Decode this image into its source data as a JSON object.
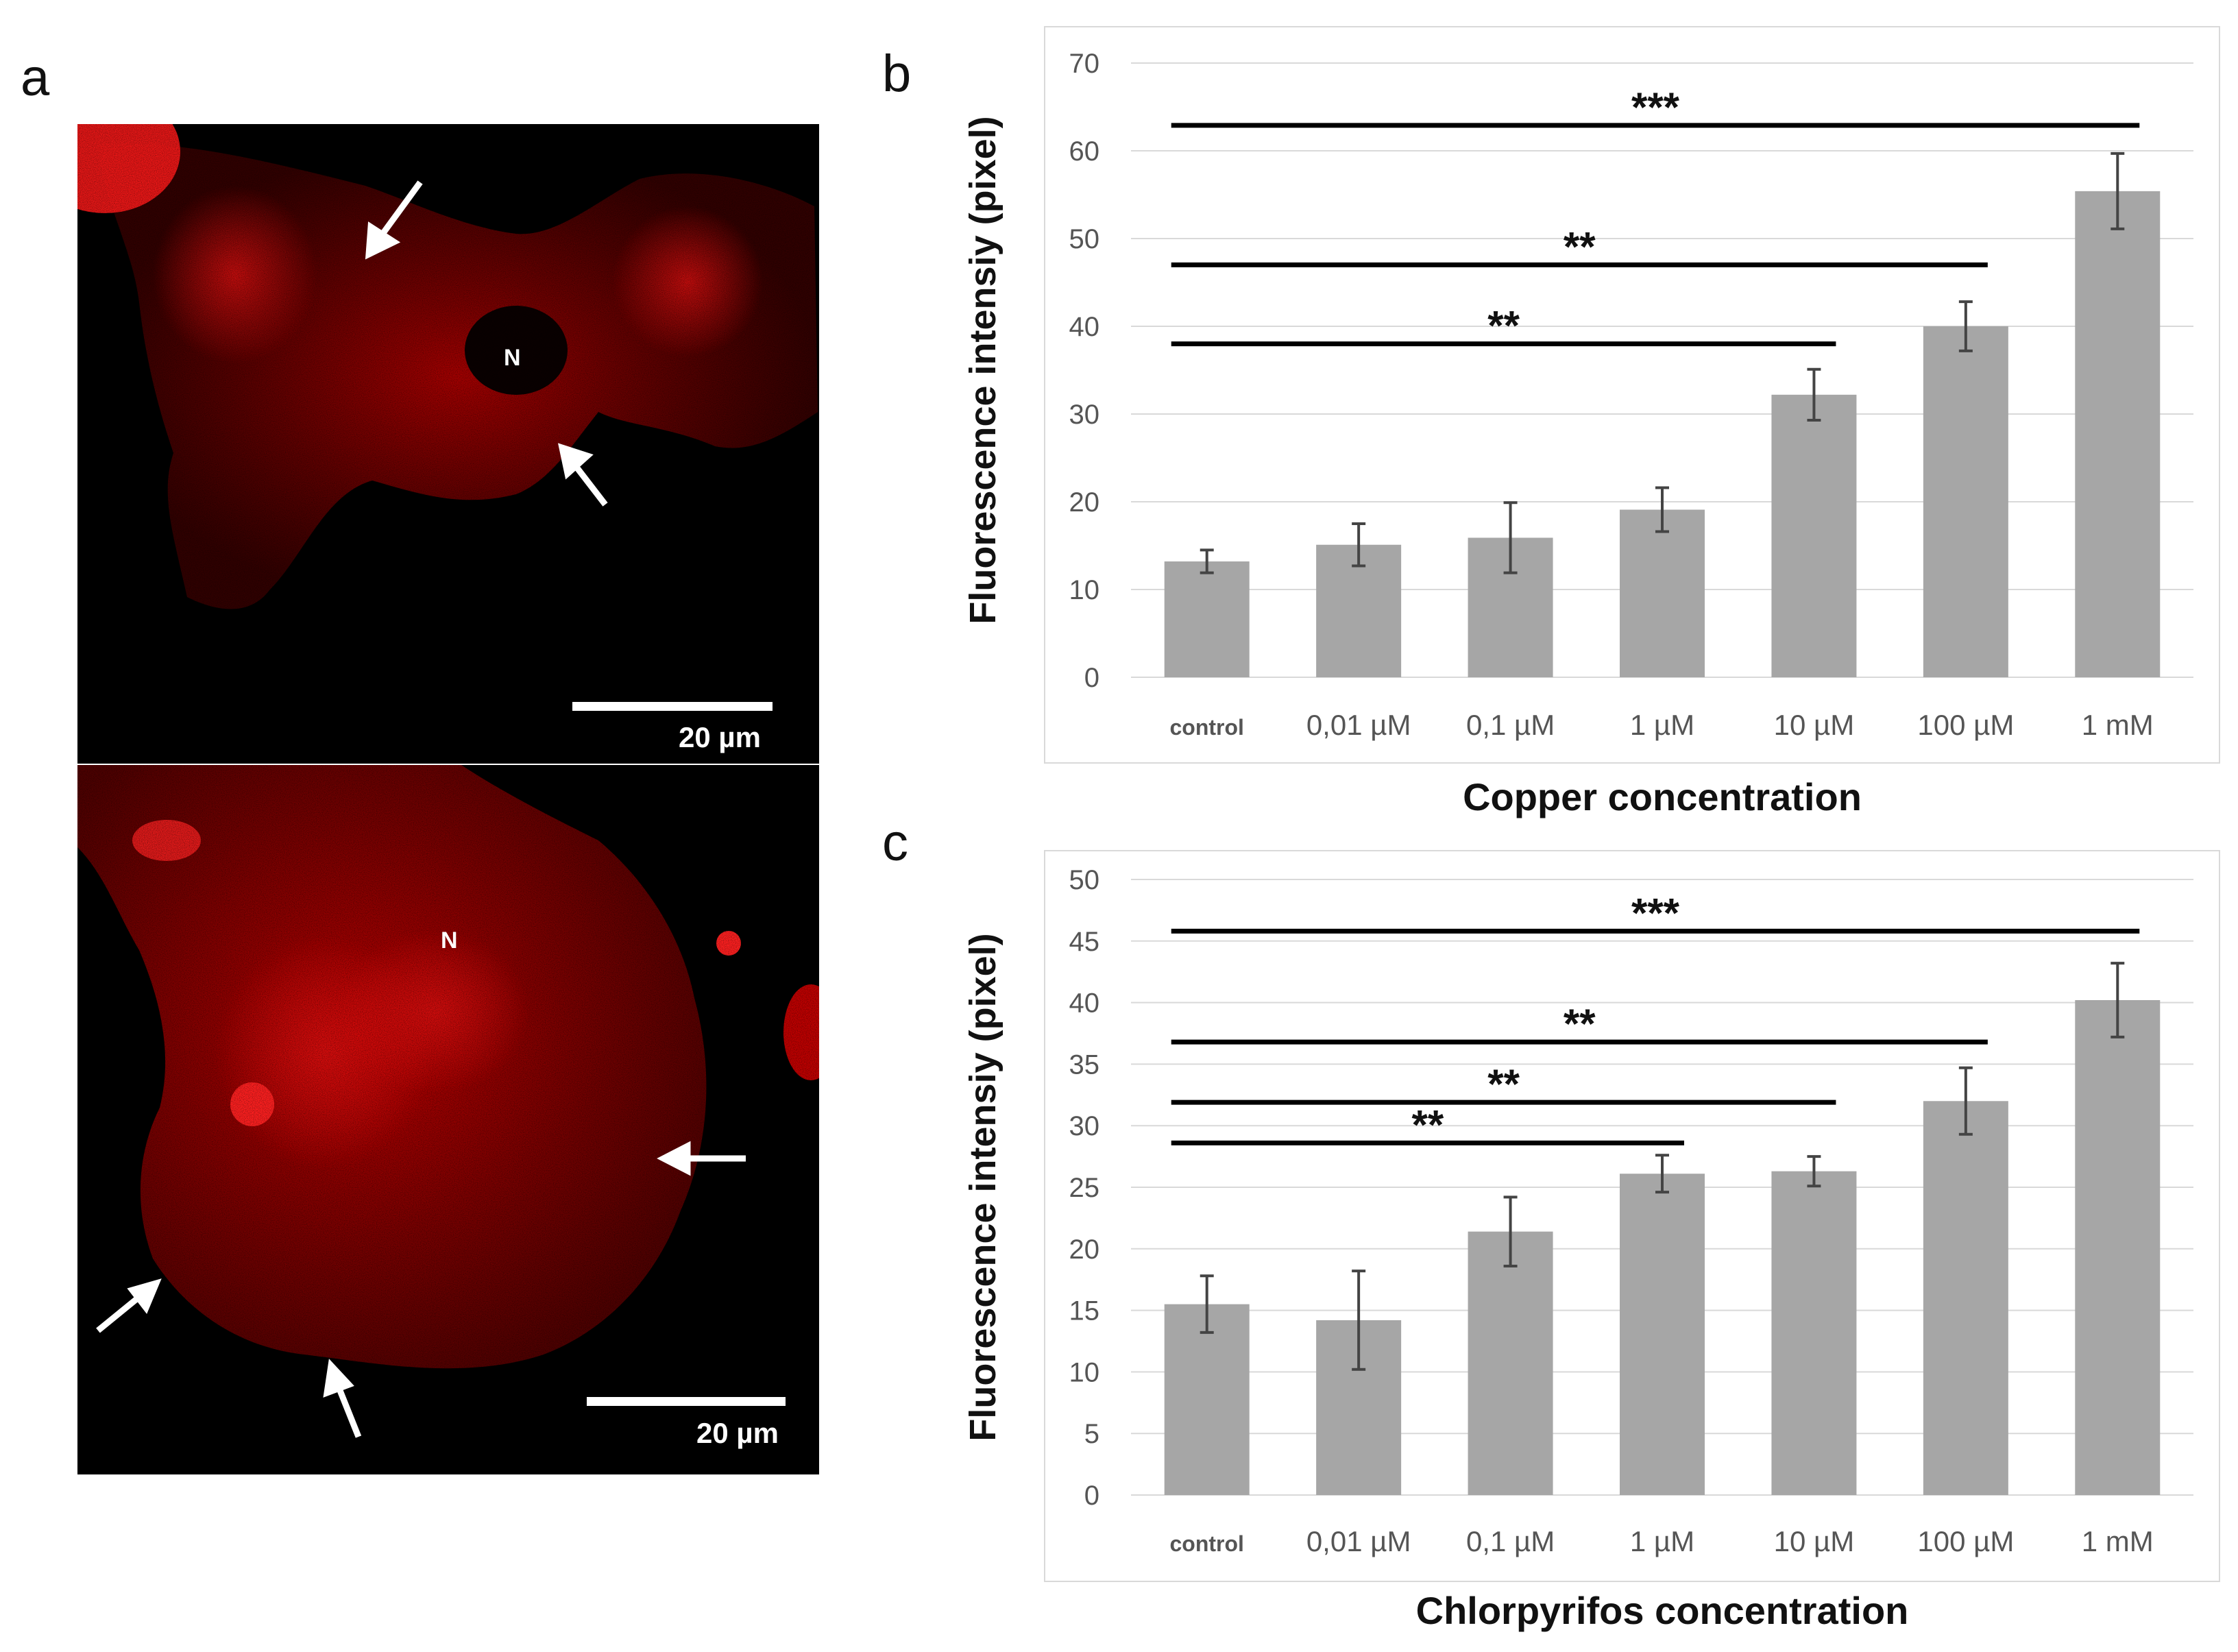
{
  "panels": {
    "a": {
      "letter": "a",
      "images": [
        {
          "nucleus_label": "N",
          "scale_label": "20 µm"
        },
        {
          "nucleus_label": "N",
          "scale_label": "20 µm"
        }
      ]
    },
    "b": {
      "letter": "b"
    },
    "c": {
      "letter": "c"
    }
  },
  "chart_data": [
    {
      "type": "bar",
      "panel": "b",
      "title": "",
      "xlabel": "Copper concentration",
      "ylabel": "Fluorescence intensiy (pixel)",
      "categories": [
        "control",
        "0,01 µM",
        "0,1 µM",
        "1 µM",
        "10 µM",
        "100 µM",
        "1 mM"
      ],
      "values": [
        13.2,
        15.1,
        15.9,
        19.1,
        32.2,
        40.0,
        55.4
      ],
      "errors": [
        1.3,
        2.4,
        4.0,
        2.5,
        2.9,
        2.8,
        4.3
      ],
      "ylim": [
        0,
        70
      ],
      "yticks": [
        0,
        10,
        20,
        30,
        40,
        50,
        60,
        70
      ],
      "grid": true,
      "bar_color": "#a6a6a6",
      "significance": [
        {
          "from": "control",
          "to": "1 mM",
          "label": "***",
          "y": 62.9
        },
        {
          "from": "control",
          "to": "100 µM",
          "label": "**",
          "y": 47.0
        },
        {
          "from": "control",
          "to": "10 µM",
          "label": "**",
          "y": 38.0
        }
      ]
    },
    {
      "type": "bar",
      "panel": "c",
      "title": "",
      "xlabel": "Chlorpyrifos concentration",
      "ylabel": "Fluorescence intensiy (pixel)",
      "categories": [
        "control",
        "0,01 µM",
        "0,1 µM",
        "1 µM",
        "10 µM",
        "100 µM",
        "1 mM"
      ],
      "values": [
        15.5,
        14.2,
        21.4,
        26.1,
        26.3,
        32.0,
        40.2
      ],
      "errors": [
        2.3,
        4.0,
        2.8,
        1.5,
        1.2,
        2.7,
        3.0
      ],
      "ylim": [
        0,
        50
      ],
      "yticks": [
        0,
        5,
        10,
        15,
        20,
        25,
        30,
        35,
        40,
        45,
        50
      ],
      "grid": true,
      "bar_color": "#a6a6a6",
      "significance": [
        {
          "from": "control",
          "to": "1 mM",
          "label": "***",
          "y": 45.8
        },
        {
          "from": "control",
          "to": "100 µM",
          "label": "**",
          "y": 36.8
        },
        {
          "from": "control",
          "to": "10 µM",
          "label": "**",
          "y": 31.9
        },
        {
          "from": "control",
          "to": "1 µM",
          "label": "**",
          "y": 28.6
        }
      ]
    }
  ],
  "colors": {
    "bar": "#a6a6a6",
    "axis_text": "#555555",
    "grid": "#d9d9d9",
    "bracket": "#000000",
    "fluorescence": "#d40000"
  }
}
